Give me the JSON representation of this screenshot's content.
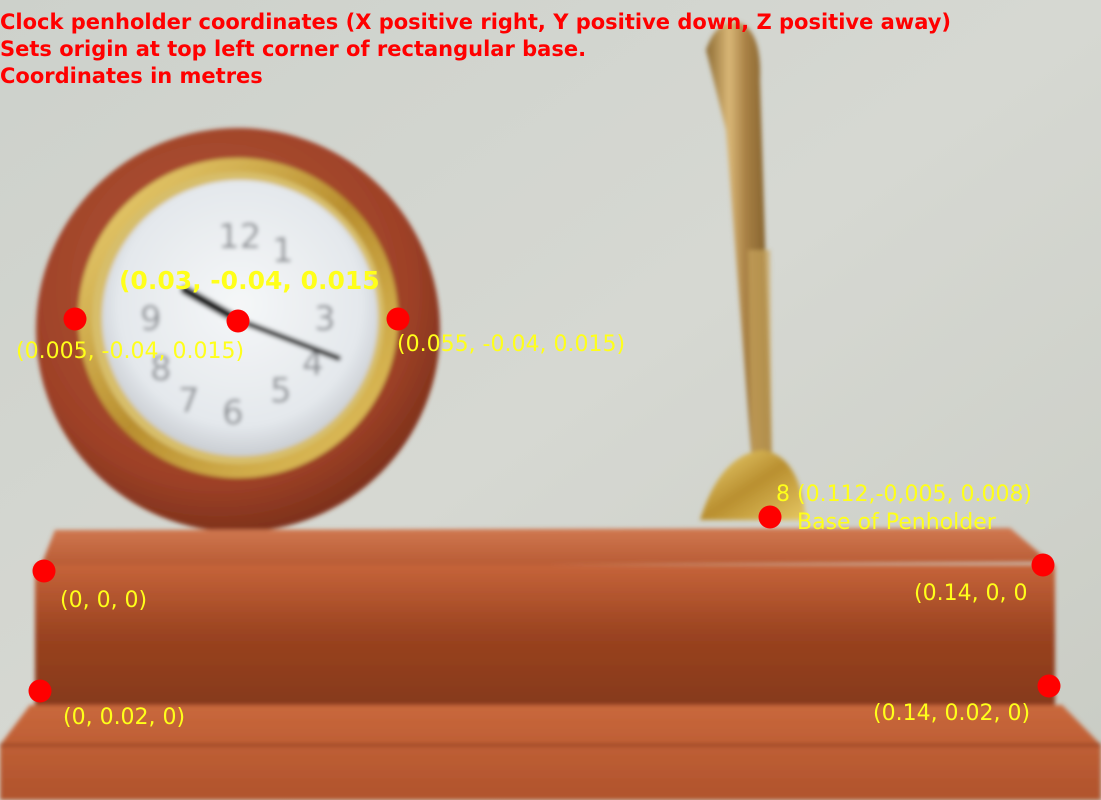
{
  "header": {
    "line1": "Clock penholder coordinates (X positive right, Y positive down, Z positive away)",
    "line2": "Sets origin at top left corner of rectangular base.",
    "line3": "Coordinates in metres"
  },
  "colors": {
    "header_text": "#ff0000",
    "marker": "#ff0000",
    "label_text": "#ffff1a"
  },
  "points": {
    "clock_center": "(0.03, -0.04, 0.015",
    "clock_left": "(0.005, -0.04, 0.015)",
    "clock_right": "(0.055, -0.04, 0.015)",
    "penholder_base_coords": "8 (0.112,-0,005, 0.008)",
    "penholder_base_name": "Base of Penholder",
    "top_left": "(0, 0, 0)",
    "top_right": "(0.14, 0, 0",
    "bottom_left": "(0, 0.02, 0)",
    "bottom_right": "(0.14, 0.02, 0)"
  }
}
